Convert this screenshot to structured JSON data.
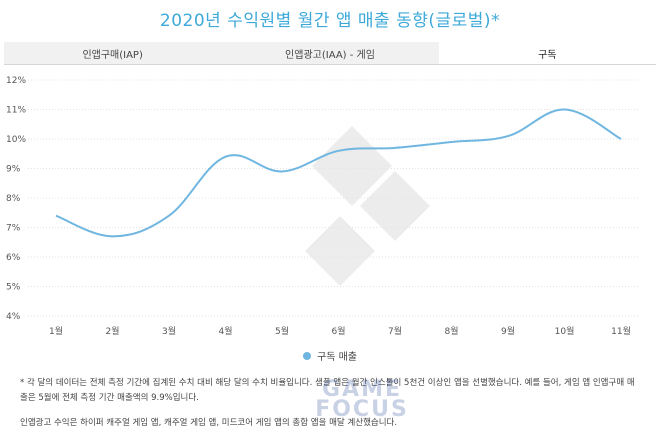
{
  "title": "2020년 수익원별 월간 앱 매출 동향(글로벌)*",
  "tabs": [
    {
      "label": "인앱구매(IAP)",
      "active": false
    },
    {
      "label": "인앱광고(IAA) - 게임",
      "active": false
    },
    {
      "label": "구독",
      "active": true
    }
  ],
  "chart_data": {
    "type": "line",
    "categories": [
      "1월",
      "2월",
      "3월",
      "4월",
      "5월",
      "6월",
      "7월",
      "8월",
      "9월",
      "10월",
      "11월"
    ],
    "series": [
      {
        "name": "구독 매출",
        "values": [
          7.4,
          6.7,
          7.4,
          9.4,
          8.9,
          9.6,
          9.7,
          9.9,
          10.1,
          11.0,
          10.0
        ]
      }
    ],
    "ylim": [
      4,
      12
    ],
    "yticks": [
      4,
      5,
      6,
      7,
      8,
      9,
      10,
      11,
      12
    ],
    "ytick_labels": [
      "4%",
      "5%",
      "6%",
      "7%",
      "8%",
      "9%",
      "10%",
      "11%",
      "12%"
    ],
    "grid": true,
    "legend_position": "bottom",
    "line_color": "#6fb6e0"
  },
  "notes": [
    "* 각 달의 데이터는 전체 측정 기간에 집계된 수치 대비 해당 달의 수치 비율입니다. 샘플 앱은 월간 인스톨이 5천건 이상인 앱을 선별했습니다. 예를 들어, 게임 앱 인앱구매 매출은 5월에 전체 측정 기간 매출액의 9.9%입니다.",
    "인앱광고 수익은 하이퍼 캐주얼 게임 앱, 캐주얼 게임 앱, 미드코어 게임 앱의 총합 앱을 매달 계산했습니다."
  ],
  "watermark": {
    "line1": "GAME",
    "line2": "FOCUS"
  }
}
